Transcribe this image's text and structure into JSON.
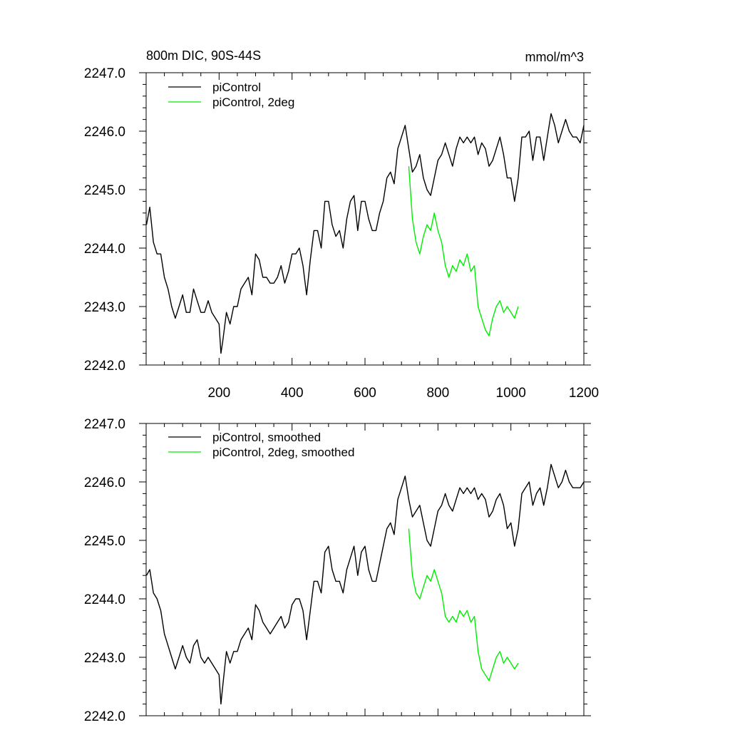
{
  "chart_data": [
    {
      "type": "line",
      "title": "800m DIC, 90S-44S",
      "units": "mmol/m^3",
      "xlim": [
        0,
        1200
      ],
      "ylim": [
        2242.0,
        2247.0
      ],
      "x_ticks": [
        200,
        400,
        600,
        800,
        1000,
        1200
      ],
      "y_ticks": [
        "2242.0",
        "2243.0",
        "2244.0",
        "2245.0",
        "2246.0",
        "2247.0"
      ],
      "series": [
        {
          "name": "piControl",
          "color": "#000000",
          "x": [
            1,
            10,
            20,
            30,
            40,
            50,
            60,
            70,
            80,
            90,
            100,
            110,
            120,
            130,
            140,
            150,
            160,
            170,
            180,
            190,
            200,
            205,
            210,
            220,
            230,
            240,
            250,
            260,
            270,
            280,
            290,
            300,
            310,
            320,
            330,
            340,
            350,
            360,
            370,
            380,
            390,
            400,
            410,
            420,
            430,
            440,
            450,
            460,
            470,
            480,
            490,
            500,
            510,
            520,
            530,
            540,
            550,
            560,
            570,
            580,
            590,
            600,
            610,
            620,
            630,
            640,
            650,
            660,
            670,
            680,
            690,
            700,
            710,
            720,
            730,
            740,
            750,
            760,
            770,
            780,
            790,
            800,
            810,
            820,
            830,
            840,
            850,
            860,
            870,
            880,
            890,
            900,
            910,
            920,
            930,
            940,
            950,
            960,
            970,
            980,
            990,
            1000,
            1010,
            1020,
            1030,
            1040,
            1050,
            1060,
            1070,
            1080,
            1090,
            1100,
            1110,
            1120,
            1130,
            1140,
            1150,
            1160,
            1170,
            1180,
            1190,
            1200
          ],
          "y": [
            2244.4,
            2244.7,
            2244.1,
            2243.9,
            2243.9,
            2243.5,
            2243.3,
            2243.0,
            2242.8,
            2243.0,
            2243.2,
            2242.9,
            2242.9,
            2243.3,
            2243.1,
            2242.9,
            2242.9,
            2243.1,
            2242.9,
            2242.8,
            2242.7,
            2242.2,
            2242.4,
            2242.9,
            2242.7,
            2243.0,
            2243.0,
            2243.3,
            2243.4,
            2243.5,
            2243.2,
            2243.9,
            2243.8,
            2243.5,
            2243.5,
            2243.4,
            2243.4,
            2243.5,
            2243.7,
            2243.4,
            2243.6,
            2243.9,
            2243.9,
            2244.0,
            2243.7,
            2243.2,
            2243.8,
            2244.3,
            2244.3,
            2244.0,
            2244.8,
            2244.8,
            2244.4,
            2244.2,
            2244.3,
            2244.0,
            2244.5,
            2244.8,
            2244.9,
            2244.3,
            2244.8,
            2244.8,
            2244.5,
            2244.3,
            2244.3,
            2244.6,
            2244.8,
            2245.2,
            2245.3,
            2245.1,
            2245.7,
            2245.9,
            2246.1,
            2245.7,
            2245.3,
            2245.4,
            2245.6,
            2245.2,
            2245.0,
            2244.9,
            2245.2,
            2245.5,
            2245.6,
            2245.8,
            2245.6,
            2245.4,
            2245.7,
            2245.9,
            2245.8,
            2245.9,
            2245.8,
            2245.9,
            2245.6,
            2245.8,
            2245.7,
            2245.4,
            2245.5,
            2245.7,
            2245.9,
            2245.6,
            2245.2,
            2245.2,
            2244.8,
            2245.2,
            2245.9,
            2245.9,
            2246.0,
            2245.5,
            2245.9,
            2245.9,
            2245.5,
            2245.9,
            2246.3,
            2246.1,
            2245.8,
            2246.0,
            2246.2,
            2246.0,
            2245.9,
            2245.9,
            2245.8,
            2246.1
          ]
        },
        {
          "name": "piControl, 2deg",
          "color": "#00ee00",
          "x": [
            720,
            730,
            740,
            750,
            760,
            770,
            780,
            790,
            800,
            810,
            820,
            830,
            840,
            850,
            860,
            870,
            880,
            890,
            900,
            910,
            920,
            930,
            940,
            950,
            960,
            970,
            980,
            990,
            1000,
            1010,
            1020
          ],
          "y": [
            2245.4,
            2244.5,
            2244.1,
            2243.9,
            2244.2,
            2244.4,
            2244.3,
            2244.6,
            2244.3,
            2244.1,
            2243.7,
            2243.5,
            2243.7,
            2243.6,
            2243.8,
            2243.7,
            2243.9,
            2243.6,
            2243.7,
            2243.0,
            2242.8,
            2242.6,
            2242.5,
            2242.8,
            2243.0,
            2243.1,
            2242.9,
            2243.0,
            2242.9,
            2242.8,
            2243.0
          ]
        }
      ]
    },
    {
      "type": "line",
      "xlim": [
        0,
        1200
      ],
      "ylim": [
        2242.0,
        2247.0
      ],
      "y_ticks": [
        "2242.0",
        "2243.0",
        "2244.0",
        "2245.0",
        "2246.0",
        "2247.0"
      ],
      "series": [
        {
          "name": "piControl, smoothed",
          "color": "#000000",
          "x": [
            1,
            10,
            20,
            30,
            40,
            50,
            60,
            70,
            80,
            90,
            100,
            110,
            120,
            130,
            140,
            150,
            160,
            170,
            180,
            190,
            200,
            205,
            210,
            220,
            230,
            240,
            250,
            260,
            270,
            280,
            290,
            300,
            310,
            320,
            330,
            340,
            350,
            360,
            370,
            380,
            390,
            400,
            410,
            420,
            430,
            440,
            450,
            460,
            470,
            480,
            490,
            500,
            510,
            520,
            530,
            540,
            550,
            560,
            570,
            580,
            590,
            600,
            610,
            620,
            630,
            640,
            650,
            660,
            670,
            680,
            690,
            700,
            710,
            720,
            730,
            740,
            750,
            760,
            770,
            780,
            790,
            800,
            810,
            820,
            830,
            840,
            850,
            860,
            870,
            880,
            890,
            900,
            910,
            920,
            930,
            940,
            950,
            960,
            970,
            980,
            990,
            1000,
            1010,
            1020,
            1030,
            1040,
            1050,
            1060,
            1070,
            1080,
            1090,
            1100,
            1110,
            1120,
            1130,
            1140,
            1150,
            1160,
            1170,
            1180,
            1190,
            1200
          ],
          "y": [
            2244.4,
            2244.5,
            2244.1,
            2244.0,
            2243.8,
            2243.4,
            2243.2,
            2243.0,
            2242.8,
            2243.0,
            2243.2,
            2243.0,
            2242.9,
            2243.2,
            2243.3,
            2243.0,
            2242.9,
            2243.0,
            2242.9,
            2242.8,
            2242.7,
            2242.2,
            2242.5,
            2243.1,
            2242.9,
            2243.1,
            2243.1,
            2243.3,
            2243.4,
            2243.5,
            2243.3,
            2243.9,
            2243.8,
            2243.6,
            2243.5,
            2243.4,
            2243.5,
            2243.6,
            2243.7,
            2243.5,
            2243.6,
            2243.9,
            2244.0,
            2244.0,
            2243.8,
            2243.3,
            2243.8,
            2244.3,
            2244.3,
            2244.1,
            2244.8,
            2244.9,
            2244.5,
            2244.3,
            2244.3,
            2244.1,
            2244.5,
            2244.7,
            2244.9,
            2244.4,
            2244.8,
            2244.9,
            2244.5,
            2244.3,
            2244.3,
            2244.6,
            2244.9,
            2245.2,
            2245.3,
            2245.1,
            2245.7,
            2245.9,
            2246.1,
            2245.7,
            2245.4,
            2245.5,
            2245.6,
            2245.3,
            2245.0,
            2244.9,
            2245.2,
            2245.5,
            2245.6,
            2245.8,
            2245.6,
            2245.5,
            2245.7,
            2245.9,
            2245.8,
            2245.9,
            2245.8,
            2245.9,
            2245.7,
            2245.8,
            2245.7,
            2245.4,
            2245.5,
            2245.7,
            2245.8,
            2245.6,
            2245.2,
            2245.3,
            2244.9,
            2245.2,
            2245.8,
            2245.9,
            2246.0,
            2245.6,
            2245.8,
            2245.9,
            2245.6,
            2245.9,
            2246.3,
            2246.1,
            2245.9,
            2246.0,
            2246.2,
            2246.0,
            2245.9,
            2245.9,
            2245.9,
            2246.0
          ]
        },
        {
          "name": "piControl, 2deg, smoothed",
          "color": "#00ee00",
          "x": [
            720,
            730,
            740,
            750,
            760,
            770,
            780,
            790,
            800,
            810,
            820,
            830,
            840,
            850,
            860,
            870,
            880,
            890,
            900,
            910,
            920,
            930,
            940,
            950,
            960,
            970,
            980,
            990,
            1000,
            1010,
            1020
          ],
          "y": [
            2245.2,
            2244.4,
            2244.1,
            2244.0,
            2244.2,
            2244.4,
            2244.3,
            2244.5,
            2244.3,
            2244.1,
            2243.7,
            2243.6,
            2243.7,
            2243.6,
            2243.8,
            2243.7,
            2243.8,
            2243.6,
            2243.7,
            2243.1,
            2242.8,
            2242.7,
            2242.6,
            2242.8,
            2243.0,
            2243.1,
            2242.9,
            2243.0,
            2242.9,
            2242.8,
            2242.9
          ]
        }
      ]
    }
  ]
}
